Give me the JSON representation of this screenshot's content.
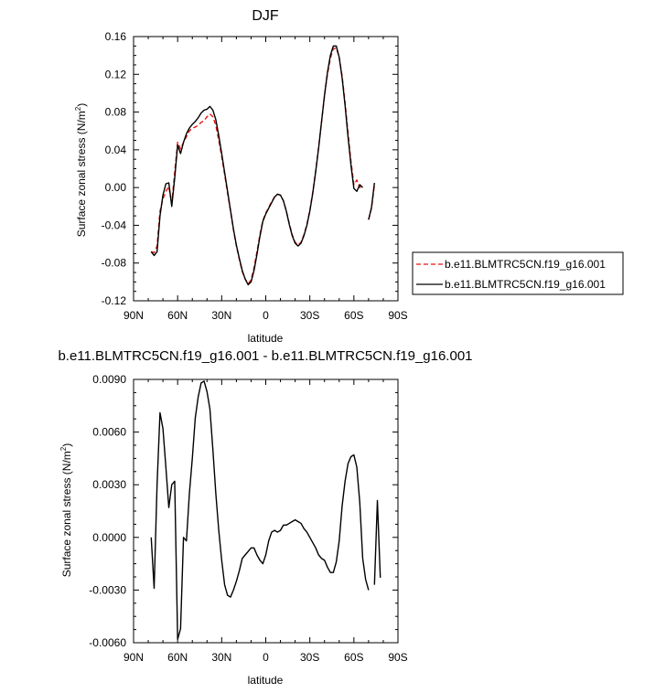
{
  "chart_data": [
    {
      "type": "line",
      "title": "DJF",
      "xlabel": "latitude",
      "ylabel": "Surface zonal stress (N/m",
      "ylabel_sup": "2",
      "ylabel_tail": ")",
      "xlim": [
        -90,
        90
      ],
      "ylim": [
        -0.12,
        0.16
      ],
      "x_ticks": [
        -90,
        -60,
        -30,
        0,
        30,
        60,
        90
      ],
      "x_tick_labels": [
        "90N",
        "60N",
        "30N",
        "0",
        "30S",
        "60S",
        "90S"
      ],
      "y_ticks": [
        -0.12,
        -0.08,
        -0.04,
        0.0,
        0.04,
        0.08,
        0.12,
        0.16
      ],
      "y_tick_labels": [
        "-0.12",
        "-0.08",
        "-0.04",
        "0.00",
        "0.04",
        "0.08",
        "0.12",
        "0.16"
      ],
      "legend_position": "right",
      "series": [
        {
          "name": "b.e11.BLMTRC5CN.f19_g16.001",
          "color": "#e8150e",
          "dash": "dashed",
          "x": [
            -78,
            -76,
            -74,
            -72,
            -70,
            -68,
            -66,
            -64,
            -62,
            -60,
            -58,
            -56,
            -54,
            -52,
            -50,
            -48,
            -46,
            -44,
            -42,
            -40,
            -38,
            -36,
            -34,
            -32,
            -30,
            -28,
            -26,
            -24,
            -22,
            -20,
            -18,
            -16,
            -14,
            -12,
            -10,
            -8,
            -6,
            -4,
            -2,
            0,
            2,
            4,
            6,
            8,
            10,
            12,
            14,
            16,
            18,
            20,
            22,
            24,
            26,
            28,
            30,
            32,
            34,
            36,
            38,
            40,
            42,
            44,
            46,
            48,
            50,
            52,
            54,
            56,
            58,
            60,
            62,
            64,
            66,
            68,
            70,
            72,
            74,
            76,
            78
          ],
          "y": [
            -0.068,
            -0.069,
            -0.062,
            -0.025,
            -0.012,
            -0.004,
            0.001,
            -0.017,
            0.016,
            0.048,
            0.041,
            0.048,
            0.054,
            0.06,
            0.063,
            0.064,
            0.066,
            0.069,
            0.071,
            0.075,
            0.078,
            0.075,
            0.066,
            0.05,
            0.033,
            0.014,
            -0.006,
            -0.025,
            -0.045,
            -0.062,
            -0.076,
            -0.089,
            -0.097,
            -0.102,
            -0.098,
            -0.085,
            -0.068,
            -0.05,
            -0.035,
            -0.027,
            -0.021,
            -0.015,
            -0.01,
            -0.007,
            -0.008,
            -0.014,
            -0.025,
            -0.038,
            -0.05,
            -0.058,
            -0.061,
            -0.058,
            -0.05,
            -0.039,
            -0.024,
            -0.005,
            0.018,
            0.043,
            0.07,
            0.097,
            0.12,
            0.137,
            0.147,
            0.148,
            0.138,
            0.118,
            0.09,
            0.058,
            0.028,
            0.003,
            0.008,
            0.0,
            0.003,
            null,
            -0.034,
            -0.022,
            0.003,
            null,
            null
          ]
        },
        {
          "name": "b.e11.BLMTRC5CN.f19_g16.001",
          "color": "#000000",
          "dash": "solid",
          "x": [
            -78,
            -76,
            -74,
            -72,
            -70,
            -68,
            -66,
            -64,
            -62,
            -60,
            -58,
            -56,
            -54,
            -52,
            -50,
            -48,
            -46,
            -44,
            -42,
            -40,
            -38,
            -36,
            -34,
            -32,
            -30,
            -28,
            -26,
            -24,
            -22,
            -20,
            -18,
            -16,
            -14,
            -12,
            -10,
            -8,
            -6,
            -4,
            -2,
            0,
            2,
            4,
            6,
            8,
            10,
            12,
            14,
            16,
            18,
            20,
            22,
            24,
            26,
            28,
            30,
            32,
            34,
            36,
            38,
            40,
            42,
            44,
            46,
            48,
            50,
            52,
            54,
            56,
            58,
            60,
            62,
            64,
            66,
            68,
            70,
            72,
            74,
            76,
            78
          ],
          "y": [
            -0.068,
            -0.072,
            -0.068,
            -0.03,
            -0.008,
            0.004,
            0.005,
            -0.02,
            0.01,
            0.045,
            0.036,
            0.048,
            0.057,
            0.063,
            0.067,
            0.07,
            0.074,
            0.079,
            0.082,
            0.083,
            0.086,
            0.082,
            0.072,
            0.055,
            0.036,
            0.016,
            -0.004,
            -0.024,
            -0.044,
            -0.061,
            -0.075,
            -0.088,
            -0.097,
            -0.103,
            -0.1,
            -0.088,
            -0.071,
            -0.052,
            -0.036,
            -0.028,
            -0.022,
            -0.016,
            -0.01,
            -0.007,
            -0.008,
            -0.014,
            -0.025,
            -0.039,
            -0.051,
            -0.059,
            -0.062,
            -0.059,
            -0.051,
            -0.04,
            -0.025,
            -0.006,
            0.017,
            0.042,
            0.07,
            0.098,
            0.122,
            0.14,
            0.15,
            0.15,
            0.138,
            0.116,
            0.087,
            0.054,
            0.024,
            -0.001,
            -0.004,
            0.003,
            0.0,
            null,
            -0.034,
            -0.021,
            0.005,
            null,
            null
          ]
        }
      ]
    },
    {
      "type": "line",
      "title": "b.e11.BLMTRC5CN.f19_g16.001 - b.e11.BLMTRC5CN.f19_g16.001",
      "xlabel": "latitude",
      "ylabel": "Surface zonal stress (N/m",
      "ylabel_sup": "2",
      "ylabel_tail": ")",
      "xlim": [
        -90,
        90
      ],
      "ylim": [
        -0.006,
        0.009
      ],
      "x_ticks": [
        -90,
        -60,
        -30,
        0,
        30,
        60,
        90
      ],
      "x_tick_labels": [
        "90N",
        "60N",
        "30N",
        "0",
        "30S",
        "60S",
        "90S"
      ],
      "y_ticks": [
        -0.006,
        -0.003,
        0.0,
        0.003,
        0.006,
        0.009
      ],
      "y_tick_labels": [
        "-0.0060",
        "-0.0030",
        "0.0000",
        "0.0030",
        "0.0060",
        "0.0090"
      ],
      "series": [
        {
          "color": "#000000",
          "dash": "solid",
          "x": [
            -78,
            -76,
            -74,
            -72,
            -70,
            -68,
            -66,
            -64,
            -62,
            -60,
            -58,
            -56,
            -54,
            -52,
            -50,
            -48,
            -46,
            -44,
            -42,
            -40,
            -38,
            -36,
            -34,
            -32,
            -30,
            -28,
            -26,
            -24,
            -22,
            -20,
            -18,
            -16,
            -14,
            -12,
            -10,
            -8,
            -6,
            -4,
            -2,
            0,
            2,
            4,
            6,
            8,
            10,
            12,
            14,
            16,
            18,
            20,
            22,
            24,
            26,
            28,
            30,
            32,
            34,
            36,
            38,
            40,
            42,
            44,
            46,
            48,
            50,
            52,
            54,
            56,
            58,
            60,
            62,
            64,
            66,
            68,
            70,
            72,
            74,
            76,
            78
          ],
          "y": [
            0.0,
            -0.0029,
            0.003,
            0.0071,
            0.0062,
            0.004,
            0.0017,
            0.003,
            0.0032,
            -0.0058,
            -0.0052,
            0.0,
            -0.0002,
            0.0025,
            0.0045,
            0.0068,
            0.008,
            0.0088,
            0.0089,
            0.0083,
            0.0073,
            0.005,
            0.0025,
            0.0004,
            -0.0013,
            -0.0027,
            -0.0033,
            -0.0034,
            -0.003,
            -0.0025,
            -0.0019,
            -0.0012,
            -0.001,
            -0.0008,
            -0.0006,
            -0.0006,
            -0.001,
            -0.0013,
            -0.0015,
            -0.001,
            -0.0002,
            0.0003,
            0.0004,
            0.0003,
            0.0004,
            0.0007,
            0.0007,
            0.0008,
            0.0009,
            0.001,
            0.0009,
            0.0008,
            0.0005,
            0.0003,
            0.0,
            -0.0003,
            -0.0006,
            -0.001,
            -0.0012,
            -0.0013,
            -0.0017,
            -0.002,
            -0.002,
            -0.0014,
            -0.0002,
            0.0018,
            0.0032,
            0.0042,
            0.0046,
            0.0047,
            0.004,
            0.002,
            -0.0012,
            -0.0024,
            -0.003,
            null,
            -0.0027,
            0.0021,
            -0.0023
          ]
        }
      ]
    }
  ]
}
